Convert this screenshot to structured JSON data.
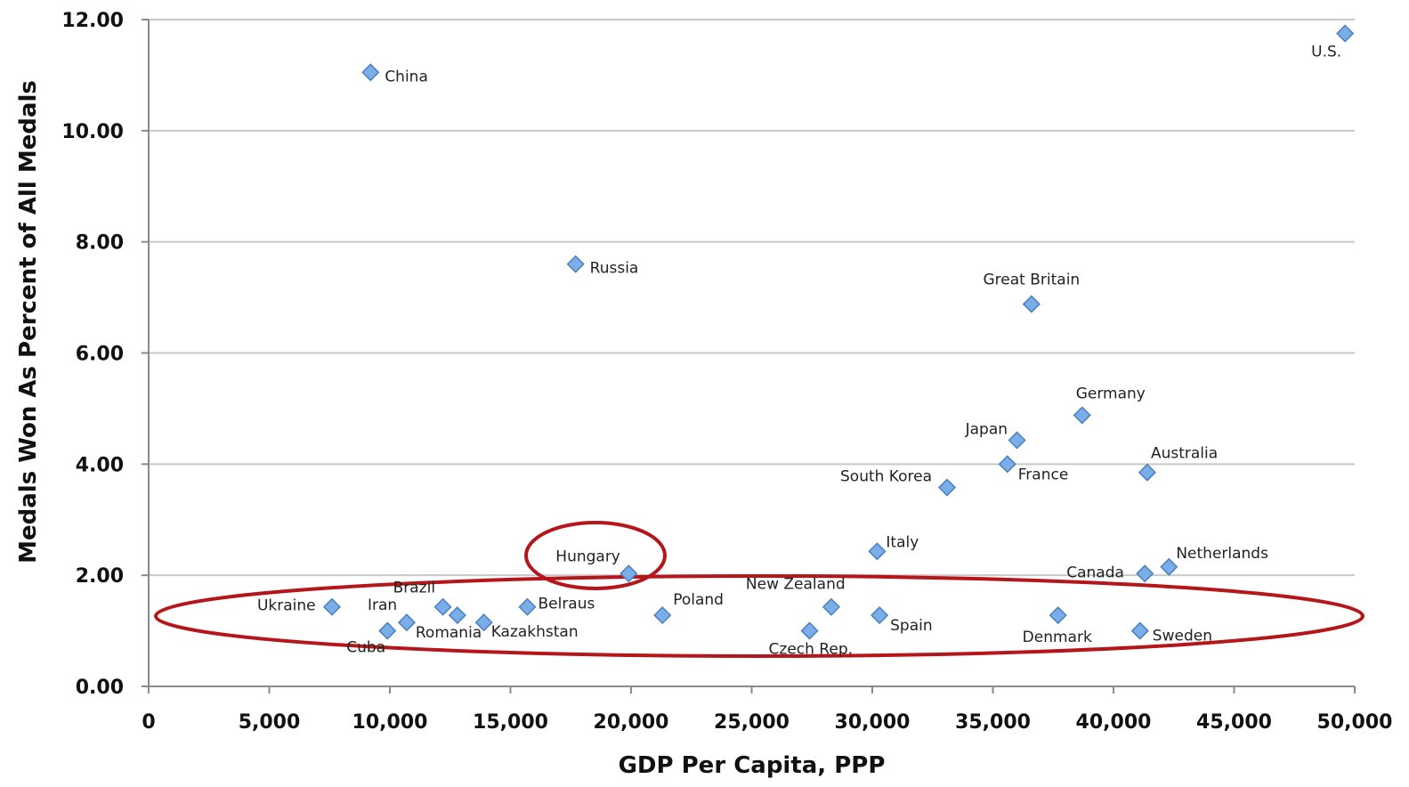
{
  "chart_data": {
    "type": "scatter",
    "xlabel": "GDP Per Capita, PPP",
    "ylabel": "Medals Won As Percent of All Medals",
    "xlim": [
      0,
      50000
    ],
    "ylim": [
      0,
      12
    ],
    "x_ticks": [
      "0",
      "5,000",
      "10,000",
      "15,000",
      "20,000",
      "25,000",
      "30,000",
      "35,000",
      "40,000",
      "45,000",
      "50,000"
    ],
    "y_ticks": [
      "0.00",
      "2.00",
      "4.00",
      "6.00",
      "8.00",
      "10.00",
      "12.00"
    ],
    "grid": "horizontal",
    "marker_color": "#7aaee8",
    "points": [
      {
        "label": "U.S.",
        "x": 49600,
        "y": 11.75
      },
      {
        "label": "China",
        "x": 9200,
        "y": 11.05
      },
      {
        "label": "Russia",
        "x": 17700,
        "y": 7.6
      },
      {
        "label": "Great Britain",
        "x": 36600,
        "y": 6.88
      },
      {
        "label": "Germany",
        "x": 38700,
        "y": 4.88
      },
      {
        "label": "Japan",
        "x": 36000,
        "y": 4.43
      },
      {
        "label": "France",
        "x": 35600,
        "y": 4.0
      },
      {
        "label": "Australia",
        "x": 41400,
        "y": 3.85
      },
      {
        "label": "South Korea",
        "x": 33100,
        "y": 3.58
      },
      {
        "label": "Italy",
        "x": 30200,
        "y": 2.43
      },
      {
        "label": "Netherlands",
        "x": 42300,
        "y": 2.15
      },
      {
        "label": "Canada",
        "x": 41300,
        "y": 2.03
      },
      {
        "label": "Hungary",
        "x": 19900,
        "y": 2.03
      },
      {
        "label": "Ukraine",
        "x": 7600,
        "y": 1.43
      },
      {
        "label": "Brazil",
        "x": 12200,
        "y": 1.43
      },
      {
        "label": "Belraus",
        "x": 15700,
        "y": 1.43
      },
      {
        "label": "New Zealand",
        "x": 28300,
        "y": 1.43
      },
      {
        "label": "Poland",
        "x": 21300,
        "y": 1.28
      },
      {
        "label": "Spain",
        "x": 30300,
        "y": 1.28
      },
      {
        "label": "Denmark",
        "x": 37700,
        "y": 1.28
      },
      {
        "label": "Iran",
        "x": 10700,
        "y": 1.15
      },
      {
        "label": "Kazakhstan",
        "x": 13900,
        "y": 1.15
      },
      {
        "label": "Romania",
        "x": 12800,
        "y": 1.28
      },
      {
        "label": "Cuba",
        "x": 9900,
        "y": 1.0
      },
      {
        "label": "Czech Rep.",
        "x": 27400,
        "y": 1.0
      },
      {
        "label": "Sweden",
        "x": 41100,
        "y": 1.0
      }
    ],
    "highlight_color": "#b5161b"
  }
}
